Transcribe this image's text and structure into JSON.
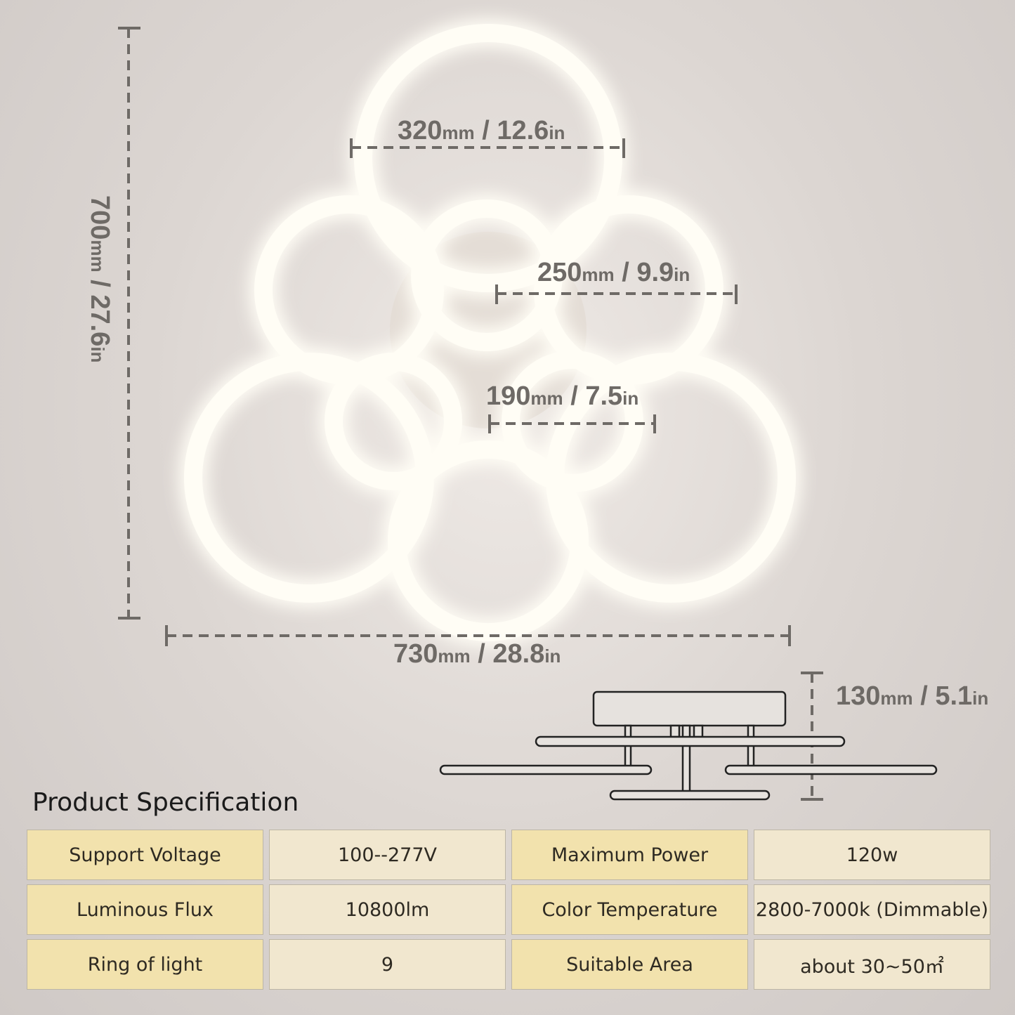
{
  "dimensions": {
    "height": {
      "value": "700",
      "unit1": "mm",
      "sep": " / ",
      "value2": "27.6",
      "unit2": "in"
    },
    "width": {
      "value": "730",
      "unit1": "mm",
      "sep": " / ",
      "value2": "28.8",
      "unit2": "in"
    },
    "large_ring": {
      "value": "320",
      "unit1": "mm",
      "sep": " / ",
      "value2": "12.6",
      "unit2": "in"
    },
    "medium_ring": {
      "value": "250",
      "unit1": "mm",
      "sep": " / ",
      "value2": "9.9",
      "unit2": "in"
    },
    "small_ring": {
      "value": "190",
      "unit1": "mm",
      "sep": " / ",
      "value2": "7.5",
      "unit2": "in"
    },
    "depth": {
      "value": "130",
      "unit1": "mm",
      "sep": " / ",
      "value2": "5.1",
      "unit2": "in"
    }
  },
  "spec": {
    "title": "Product Specification",
    "rows": [
      [
        {
          "k": "Support Voltage",
          "v": "100--277V"
        },
        {
          "k": "Maximum Power",
          "v": "120w"
        }
      ],
      [
        {
          "k": "Luminous Flux",
          "v": "10800lm"
        },
        {
          "k": "Color Temperature",
          "v": "2800-7000k (Dimmable)"
        }
      ],
      [
        {
          "k": "Ring of light",
          "v": "9"
        },
        {
          "k": "Suitable Area",
          "v": "about 30~50㎡"
        }
      ]
    ]
  },
  "colors": {
    "key_cell": "#f2e2ad",
    "value_cell": "#f1e7cf",
    "dimension_text": "#6e6a66"
  }
}
